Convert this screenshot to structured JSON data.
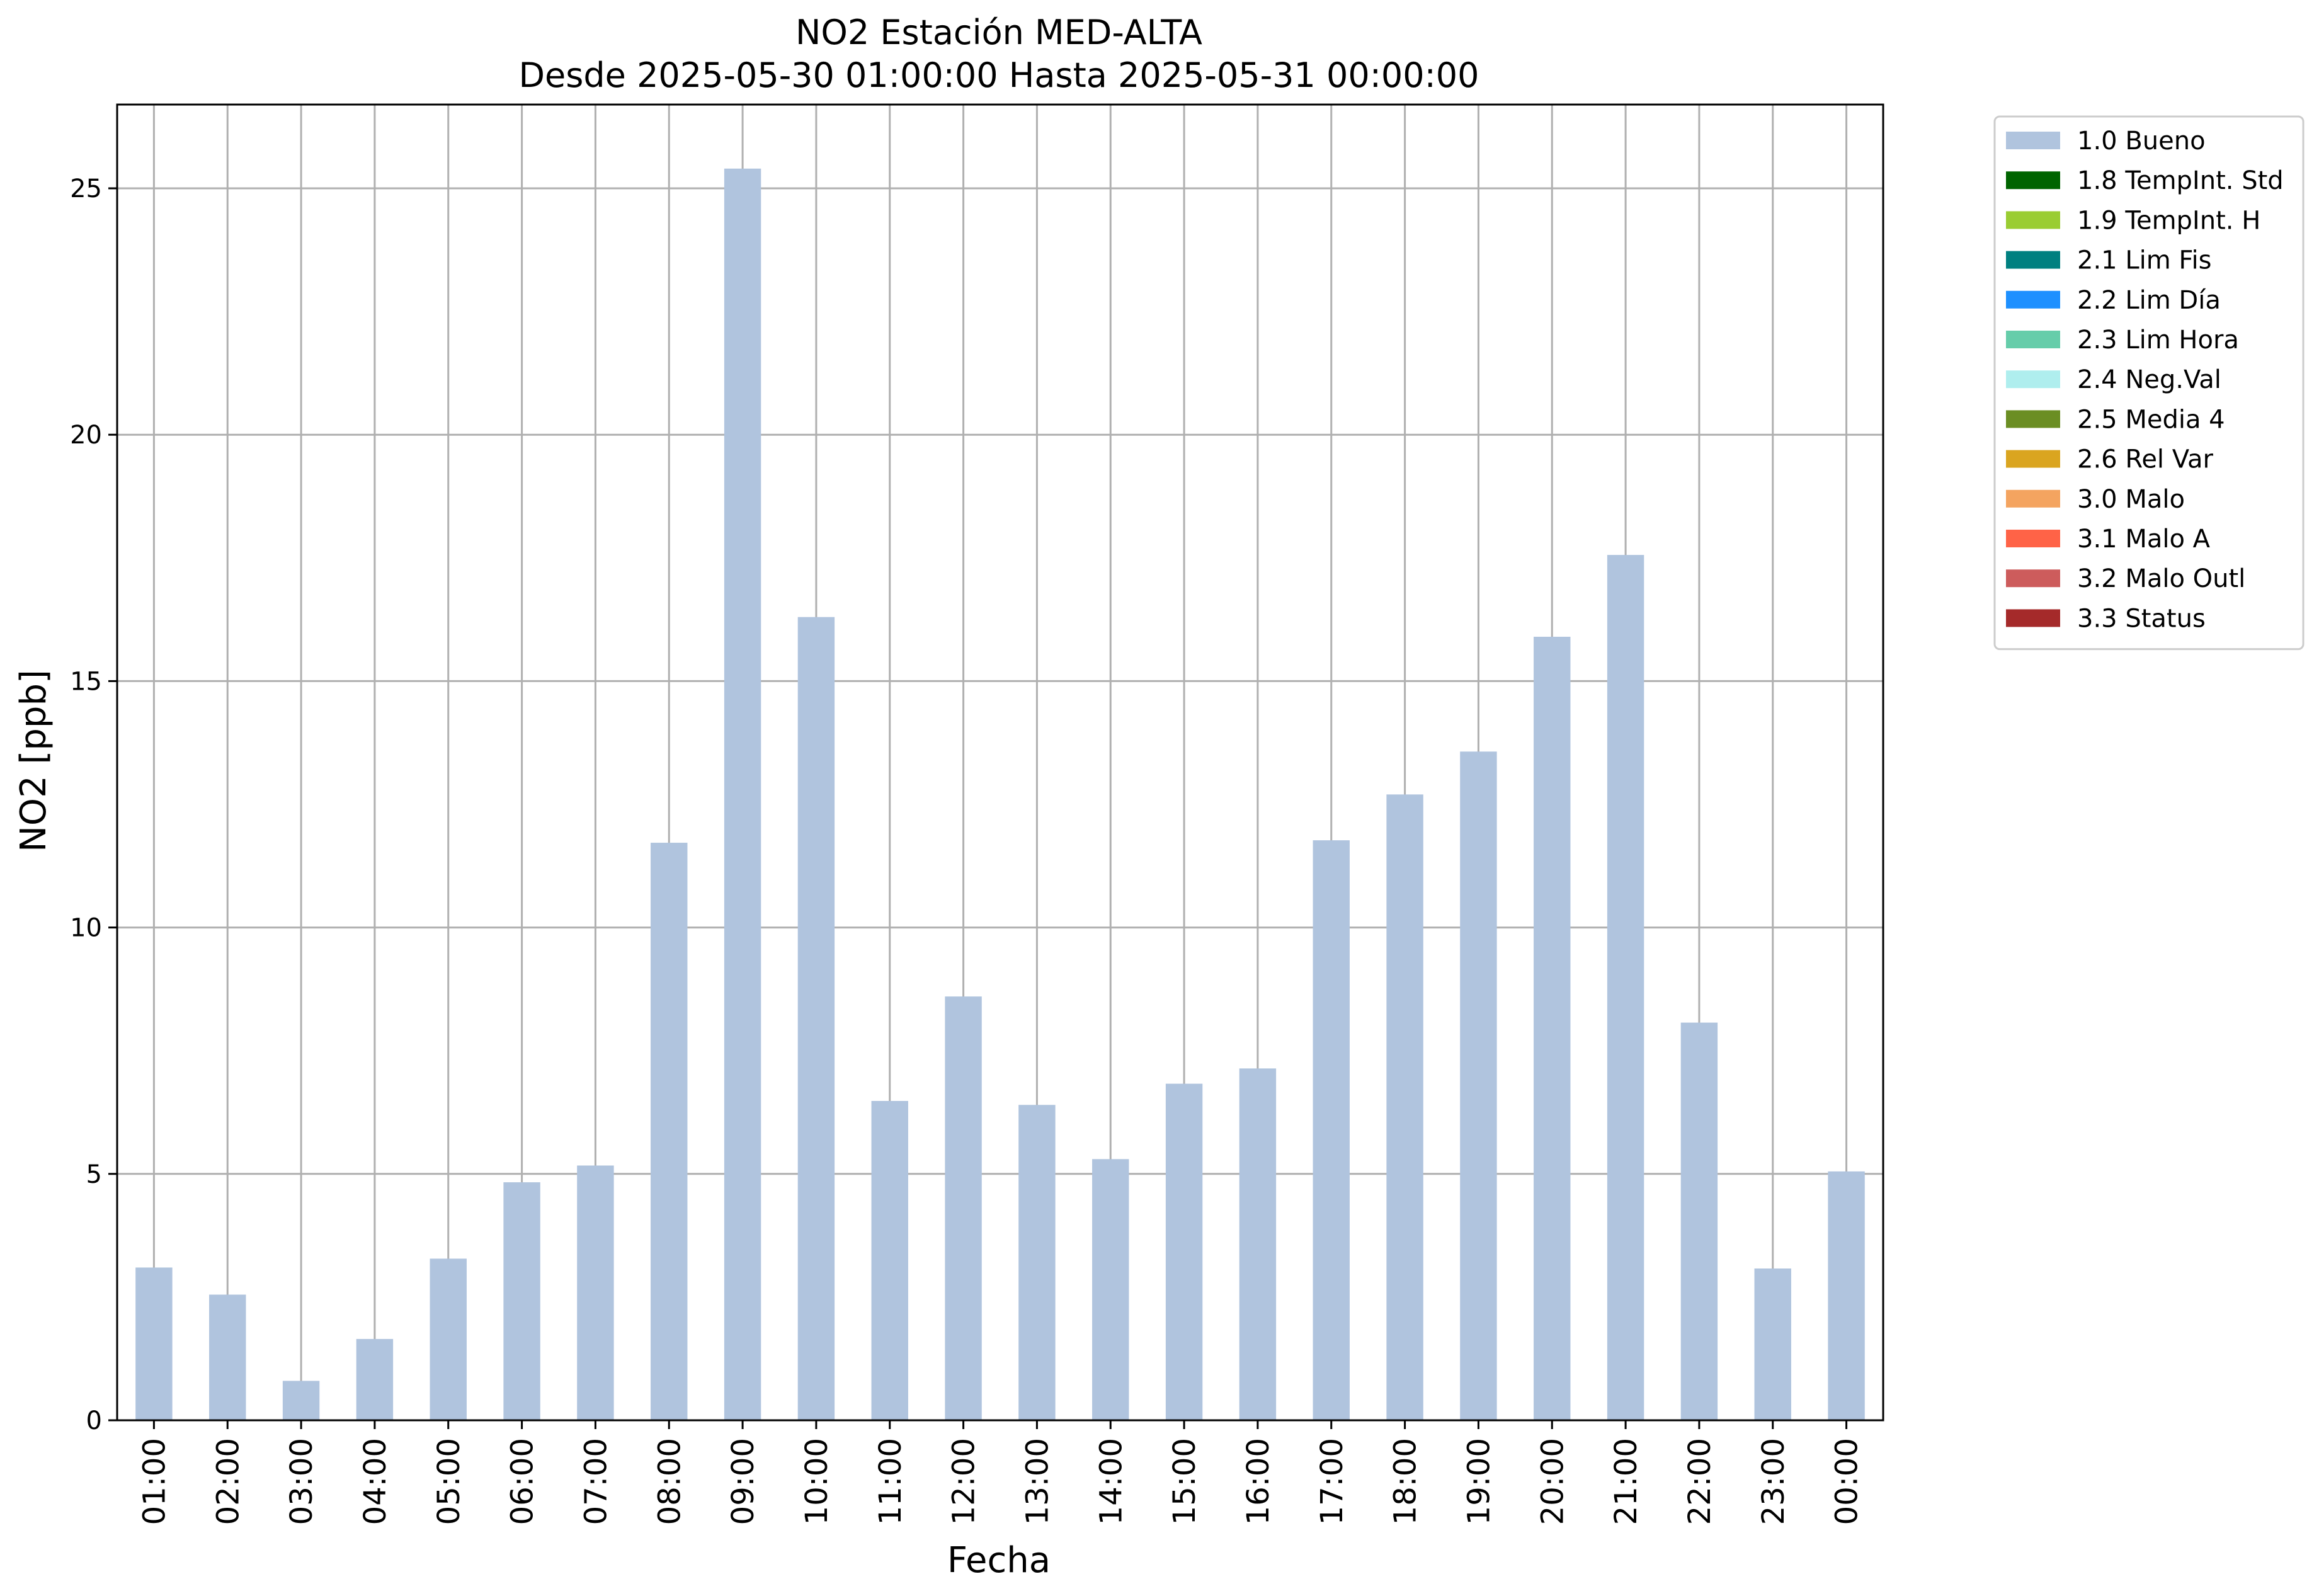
{
  "chart_data": {
    "type": "bar",
    "title": "NO2 Estación MED-ALTA",
    "subtitle": "Desde 2025-05-30 01:00:00 Hasta 2025-05-31 00:00:00",
    "xlabel": "Fecha",
    "ylabel": "NO2 [ppb]",
    "ylim": [
      0,
      26.7
    ],
    "yticks": [
      0,
      5,
      10,
      15,
      20,
      25
    ],
    "grid": true,
    "legend_position": "outside-top-right",
    "categories": [
      "01:00",
      "02:00",
      "03:00",
      "04:00",
      "05:00",
      "06:00",
      "07:00",
      "08:00",
      "09:00",
      "10:00",
      "11:00",
      "12:00",
      "13:00",
      "14:00",
      "15:00",
      "16:00",
      "17:00",
      "18:00",
      "19:00",
      "20:00",
      "21:00",
      "22:00",
      "23:00",
      "00:00"
    ],
    "series": [
      {
        "name": "1.0 Bueno",
        "color": "#b0c4de",
        "values": [
          3.1,
          2.55,
          0.8,
          1.65,
          3.28,
          4.83,
          5.17,
          11.72,
          25.4,
          16.3,
          6.48,
          8.6,
          6.4,
          5.3,
          6.83,
          7.14,
          11.77,
          12.7,
          13.57,
          15.9,
          17.56,
          8.07,
          3.08,
          5.05
        ]
      }
    ],
    "legend": [
      {
        "label": "1.0 Bueno",
        "color": "#b0c4de"
      },
      {
        "label": "1.8 TempInt. Std",
        "color": "#006400"
      },
      {
        "label": "1.9 TempInt. H",
        "color": "#9acd32"
      },
      {
        "label": "2.1 Lim Fis",
        "color": "#008080"
      },
      {
        "label": "2.2 Lim Día",
        "color": "#1e90ff"
      },
      {
        "label": "2.3 Lim Hora",
        "color": "#66cdaa"
      },
      {
        "label": "2.4 Neg.Val",
        "color": "#afeeee"
      },
      {
        "label": "2.5 Media 4",
        "color": "#6b8e23"
      },
      {
        "label": "2.6 Rel Var",
        "color": "#daa520"
      },
      {
        "label": "3.0 Malo",
        "color": "#f4a460"
      },
      {
        "label": "3.1 Malo A",
        "color": "#ff6347"
      },
      {
        "label": "3.2 Malo Outl",
        "color": "#cd5c5c"
      },
      {
        "label": "3.3 Status",
        "color": "#a52a2a"
      }
    ]
  }
}
